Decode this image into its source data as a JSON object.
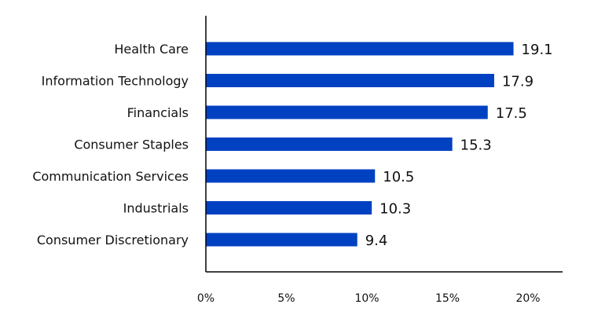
{
  "chart_data": {
    "type": "bar",
    "orientation": "horizontal",
    "categories": [
      "Health Care",
      "Information Technology",
      "Financials",
      "Consumer Staples",
      "Communication Services",
      "Industrials",
      "Consumer Discretionary"
    ],
    "values": [
      19.1,
      17.9,
      17.5,
      15.3,
      10.5,
      10.3,
      9.4
    ],
    "value_labels": [
      "19.1",
      "17.9",
      "17.5",
      "15.3",
      "10.5",
      "10.3",
      "9.4"
    ],
    "xlim": [
      0,
      22
    ],
    "xticks": [
      0,
      5,
      10,
      15,
      20
    ],
    "xtick_labels": [
      "0%",
      "5%",
      "10%",
      "15%",
      "20%"
    ],
    "title": "",
    "xlabel": "",
    "ylabel": "",
    "grid": false,
    "bar_color": "#0041C2"
  }
}
